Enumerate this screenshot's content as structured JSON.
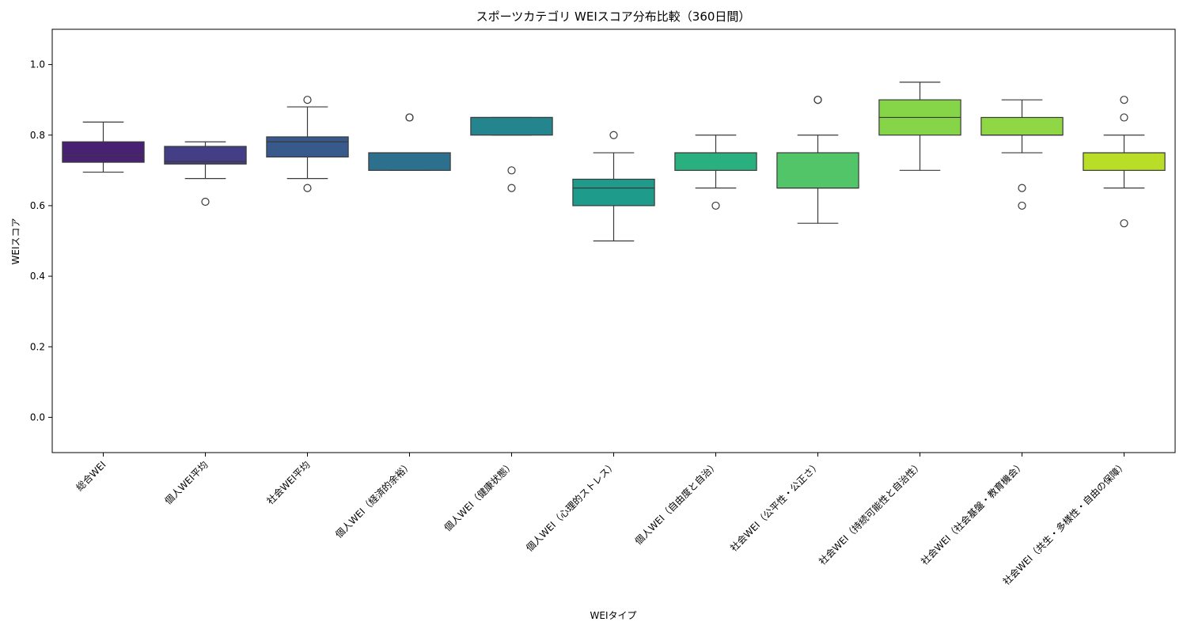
{
  "chart_data": {
    "type": "box",
    "title": "スポーツカテゴリ WEIスコア分布比較（360日間）",
    "xlabel": "WEIタイプ",
    "ylabel": "WEIスコア",
    "ylim": [
      -0.1,
      1.1
    ],
    "yticks": [
      "0.0",
      "0.2",
      "0.4",
      "0.6",
      "0.8",
      "1.0"
    ],
    "grid": false,
    "categories": [
      "総合WEI",
      "個人WEI平均",
      "社会WEI平均",
      "個人WEI（経済的余裕）",
      "個人WEI（健康状態）",
      "個人WEI（心理的ストレス）",
      "個人WEI（自由度と自治）",
      "社会WEI（公平性・公正さ）",
      "社会WEI（持続可能性と自治性）",
      "社会WEI（社会基盤・教育機会）",
      "社会WEI（共生・多様性・自由の保障）"
    ],
    "boxes": [
      {
        "whisker_low": 0.695,
        "q1": 0.723,
        "median": 0.743,
        "q3": 0.781,
        "whisker_high": 0.837,
        "outliers": [],
        "color": "#482173"
      },
      {
        "whisker_low": 0.677,
        "q1": 0.718,
        "median": 0.725,
        "q3": 0.768,
        "whisker_high": 0.781,
        "outliers": [
          0.611
        ],
        "color": "#433e85"
      },
      {
        "whisker_low": 0.677,
        "q1": 0.738,
        "median": 0.781,
        "q3": 0.795,
        "whisker_high": 0.88,
        "outliers": [
          0.9,
          0.65
        ],
        "color": "#38598c"
      },
      {
        "whisker_low": 0.7,
        "q1": 0.7,
        "median": 0.75,
        "q3": 0.75,
        "whisker_high": 0.75,
        "outliers": [
          0.85,
          0.85
        ],
        "color": "#2d708e"
      },
      {
        "whisker_low": 0.8,
        "q1": 0.8,
        "median": 0.85,
        "q3": 0.85,
        "whisker_high": 0.85,
        "outliers": [
          0.7,
          0.65
        ],
        "color": "#25858e"
      },
      {
        "whisker_low": 0.5,
        "q1": 0.6,
        "median": 0.65,
        "q3": 0.675,
        "whisker_high": 0.75,
        "outliers": [
          0.8
        ],
        "color": "#1e9b8a"
      },
      {
        "whisker_low": 0.65,
        "q1": 0.7,
        "median": 0.75,
        "q3": 0.75,
        "whisker_high": 0.8,
        "outliers": [
          0.6
        ],
        "color": "#2ab07f"
      },
      {
        "whisker_low": 0.55,
        "q1": 0.65,
        "median": 0.65,
        "q3": 0.75,
        "whisker_high": 0.8,
        "outliers": [
          0.9,
          0.9
        ],
        "color": "#52c569"
      },
      {
        "whisker_low": 0.7,
        "q1": 0.8,
        "median": 0.85,
        "q3": 0.9,
        "whisker_high": 0.95,
        "outliers": [],
        "color": "#86d549"
      },
      {
        "whisker_low": 0.75,
        "q1": 0.8,
        "median": 0.8,
        "q3": 0.85,
        "whisker_high": 0.9,
        "outliers": [
          0.65,
          0.6
        ],
        "color": "#8fd744"
      },
      {
        "whisker_low": 0.65,
        "q1": 0.7,
        "median": 0.75,
        "q3": 0.75,
        "whisker_high": 0.8,
        "outliers": [
          0.9,
          0.85,
          0.55
        ],
        "color": "#bade28"
      }
    ]
  }
}
